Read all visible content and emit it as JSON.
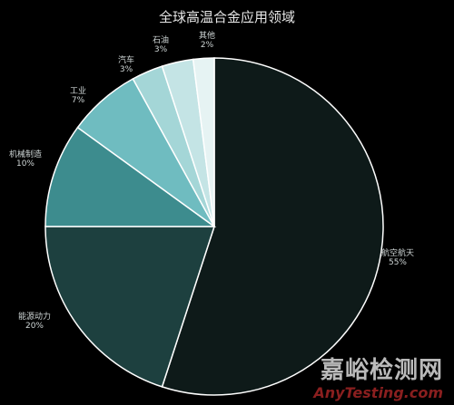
{
  "chart_data": {
    "type": "pie",
    "title": "全球高温合金应用领域",
    "slices": [
      {
        "label": "航空航天",
        "value": 55,
        "value_text": "55%",
        "color": "#0e1a19"
      },
      {
        "label": "能源动力",
        "value": 20,
        "value_text": "20%",
        "color": "#1d403f"
      },
      {
        "label": "机械制造",
        "value": 10,
        "value_text": "10%",
        "color": "#3d8c8e"
      },
      {
        "label": "工业",
        "value": 7,
        "value_text": "7%",
        "color": "#6fbcc0"
      },
      {
        "label": "汽车",
        "value": 3,
        "value_text": "3%",
        "color": "#a4d6d7"
      },
      {
        "label": "石油",
        "value": 3,
        "value_text": "3%",
        "color": "#c4e4e5"
      },
      {
        "label": "其他",
        "value": 2,
        "value_text": "2%",
        "color": "#e6f3f3"
      }
    ],
    "start_angle_deg": 0,
    "direction": "clockwise",
    "slice_border_color": "#ffffff"
  },
  "watermark": {
    "main": "嘉峪检测网",
    "sub": "AnyTesting.com"
  }
}
